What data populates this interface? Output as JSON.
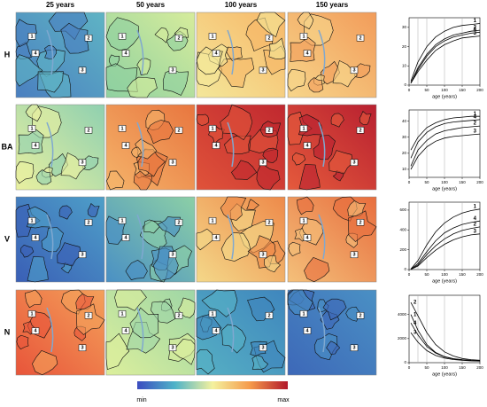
{
  "columns": [
    "25 years",
    "50 years",
    "100 years",
    "150 years"
  ],
  "rows": [
    "H",
    "BA",
    "V",
    "N"
  ],
  "map_markers": [
    "1",
    "2",
    "3",
    "4"
  ],
  "colorbar": {
    "min": "min",
    "max": "max"
  },
  "chart_data": [
    {
      "type": "line",
      "x": [
        5,
        25,
        50,
        75,
        100,
        125,
        150,
        175,
        200
      ],
      "xlim": [
        0,
        200
      ],
      "xticks": [
        0,
        50,
        100,
        150,
        200
      ],
      "ylim": [
        0,
        35
      ],
      "yticks": [
        0,
        10,
        20,
        30
      ],
      "vlines": [
        25,
        50,
        100,
        150
      ],
      "xlabel": "age (years)",
      "series": [
        {
          "name": "1",
          "color": "#000000",
          "values": [
            2,
            12,
            20,
            25,
            28,
            30,
            31,
            31.5,
            32
          ]
        },
        {
          "name": "2",
          "color": "#000000",
          "values": [
            1,
            9,
            16,
            21,
            24,
            26,
            27,
            28,
            28.5
          ]
        },
        {
          "name": "4",
          "color": "#000000",
          "values": [
            1,
            8,
            15,
            20,
            23,
            25,
            26,
            27,
            27.5
          ]
        },
        {
          "name": "3",
          "color": "#000000",
          "values": [
            1,
            7,
            13,
            18,
            21,
            23,
            24.5,
            25,
            25.5
          ]
        }
      ]
    },
    {
      "type": "line",
      "x": [
        5,
        25,
        50,
        75,
        100,
        125,
        150,
        175,
        200
      ],
      "xlim": [
        0,
        200
      ],
      "xticks": [
        0,
        50,
        100,
        150,
        200
      ],
      "ylim": [
        5,
        47
      ],
      "yticks": [
        10,
        20,
        30,
        40
      ],
      "vlines": [
        25,
        50,
        100,
        150
      ],
      "xlabel": "age (years)",
      "series": [
        {
          "name": "1",
          "color": "#000000",
          "values": [
            22,
            30,
            36,
            39,
            41,
            42,
            42.5,
            43,
            43
          ]
        },
        {
          "name": "4",
          "color": "#000000",
          "values": [
            17,
            27,
            33,
            36.5,
            38.5,
            39.5,
            40,
            40.5,
            41
          ]
        },
        {
          "name": "2",
          "color": "#000000",
          "values": [
            12,
            22,
            28,
            32,
            34,
            35,
            36,
            36.5,
            37
          ]
        },
        {
          "name": "3",
          "color": "#000000",
          "values": [
            10,
            18,
            24,
            27.5,
            29.5,
            30.5,
            31,
            31.5,
            32
          ]
        }
      ]
    },
    {
      "type": "line",
      "x": [
        5,
        25,
        50,
        75,
        100,
        125,
        150,
        175,
        200
      ],
      "xlim": [
        0,
        200
      ],
      "xticks": [
        0,
        50,
        100,
        150,
        200
      ],
      "ylim": [
        0,
        680
      ],
      "yticks": [
        0,
        200,
        400,
        600
      ],
      "vlines": [
        25,
        50,
        100,
        150
      ],
      "xlabel": "age (years)",
      "series": [
        {
          "name": "1",
          "color": "#000000",
          "values": [
            5,
            90,
            250,
            380,
            470,
            530,
            570,
            595,
            610
          ]
        },
        {
          "name": "4",
          "color": "#000000",
          "values": [
            3,
            60,
            180,
            290,
            370,
            420,
            455,
            475,
            490
          ]
        },
        {
          "name": "2",
          "color": "#000000",
          "values": [
            2,
            45,
            150,
            240,
            310,
            360,
            395,
            415,
            430
          ]
        },
        {
          "name": "3",
          "color": "#000000",
          "values": [
            2,
            35,
            120,
            195,
            255,
            300,
            330,
            350,
            360
          ]
        }
      ]
    },
    {
      "type": "line",
      "x": [
        5,
        25,
        50,
        75,
        100,
        125,
        150,
        175,
        200
      ],
      "xlim": [
        0,
        200
      ],
      "xticks": [
        0,
        50,
        100,
        150,
        200
      ],
      "ylim": [
        0,
        5600
      ],
      "yticks": [
        0,
        2000,
        4000
      ],
      "vlines": [
        25,
        50,
        100,
        150
      ],
      "xlabel": "age (years)",
      "series": [
        {
          "name": "2",
          "color": "#000000",
          "values": [
            5000,
            3900,
            2500,
            1500,
            900,
            550,
            350,
            250,
            200
          ]
        },
        {
          "name": "1",
          "color": "#000000",
          "values": [
            4000,
            2700,
            1500,
            850,
            500,
            330,
            240,
            190,
            160
          ]
        },
        {
          "name": "4",
          "color": "#000000",
          "values": [
            3300,
            2300,
            1350,
            800,
            480,
            320,
            230,
            180,
            150
          ]
        },
        {
          "name": "3",
          "color": "#000000",
          "values": [
            2500,
            1700,
            1000,
            600,
            380,
            260,
            190,
            150,
            130
          ]
        }
      ]
    }
  ]
}
